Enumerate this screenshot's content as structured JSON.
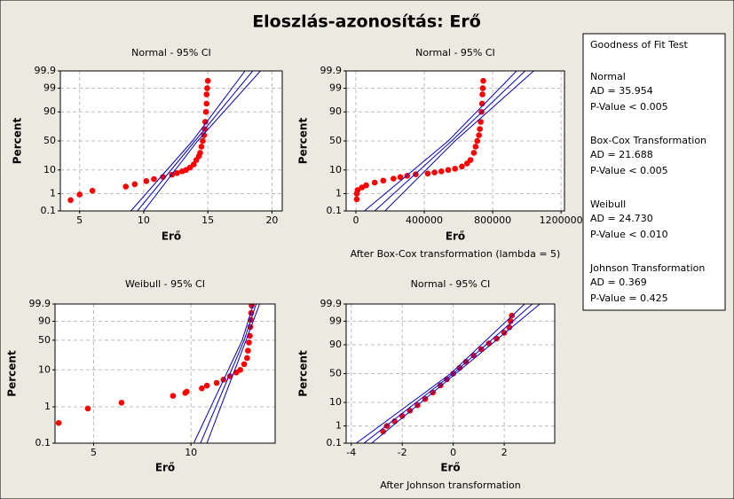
{
  "title": "Eloszlás-azonosítás: Erő",
  "chart_data": [
    {
      "type": "probability",
      "title": "Normal - 95% CI",
      "x_label": "Erő",
      "y_label": "Percent",
      "xscale": "linear",
      "yscale": "normal",
      "grid": true,
      "xlim": [
        3.5,
        20.8
      ],
      "xticks": [
        5,
        10,
        15,
        20
      ],
      "ylim": [
        0.1,
        99.9
      ],
      "yticks": [
        0.1,
        1,
        10,
        50,
        90,
        99,
        99.9
      ],
      "series": [
        {
          "style": "points",
          "color": "#ff0000",
          "x": [
            4.3,
            5.0,
            6.0,
            8.6,
            9.3,
            10.2,
            10.8,
            11.5,
            12.2,
            12.6,
            13.0,
            13.3,
            13.6,
            13.9,
            14.1,
            14.3,
            14.4,
            14.5,
            14.6,
            14.7,
            14.75,
            14.8,
            14.85,
            14.9,
            14.9,
            14.95,
            15.0
          ],
          "values": [
            0.45,
            0.9,
            1.4,
            2.2,
            2.8,
            3.8,
            4.6,
            5.6,
            6.8,
            7.8,
            9,
            10,
            12,
            15,
            20,
            25,
            30,
            40,
            50,
            60,
            70,
            80,
            90,
            95,
            98,
            99,
            99.6
          ]
        },
        {
          "style": "line",
          "color": "#0000cc",
          "x": [
            9.5,
            14,
            18.5
          ],
          "values": [
            0.1,
            50,
            99.9
          ]
        },
        {
          "style": "line",
          "color": "#0000cc",
          "x": [
            9.0,
            13.8,
            17.9
          ],
          "values": [
            0.1,
            50,
            99.9
          ]
        },
        {
          "style": "line",
          "color": "#0000cc",
          "x": [
            10.0,
            14.2,
            19.1
          ],
          "values": [
            0.1,
            50,
            99.9
          ]
        }
      ]
    },
    {
      "type": "probability",
      "title": "Normal - 95% CI",
      "x_label": "Erő",
      "y_label": "Percent",
      "note": "After Box-Cox transformation (lambda = 5)",
      "xscale": "linear",
      "yscale": "normal",
      "grid": true,
      "xlim": [
        -57000,
        1220000
      ],
      "xticks": [
        0,
        400000,
        800000,
        1200000
      ],
      "ylim": [
        0.1,
        99.9
      ],
      "yticks": [
        0.1,
        1,
        10,
        50,
        90,
        99,
        99.9
      ],
      "series": [
        {
          "style": "points",
          "color": "#ff0000",
          "x": [
            5000,
            5000,
            10000,
            35000,
            60000,
            110000,
            160000,
            220000,
            260000,
            300000,
            350000,
            420000,
            460000,
            500000,
            540000,
            580000,
            620000,
            650000,
            670000,
            690000,
            700000,
            710000,
            720000,
            725000,
            730000,
            735000,
            738000,
            740000,
            742000,
            745000
          ],
          "values": [
            0.5,
            1.0,
            1.5,
            2.0,
            2.5,
            3.3,
            4.0,
            4.8,
            5.5,
            6.2,
            7.0,
            7.5,
            8.2,
            9,
            10,
            11,
            13,
            16,
            20,
            30,
            40,
            50,
            60,
            70,
            80,
            90,
            95,
            98,
            99,
            99.6
          ]
        },
        {
          "style": "line",
          "color": "#0000cc",
          "x": [
            110000,
            560000,
            990000
          ],
          "values": [
            0.1,
            50,
            99.9
          ]
        },
        {
          "style": "line",
          "color": "#0000cc",
          "x": [
            50000,
            540000,
            940000
          ],
          "values": [
            0.1,
            50,
            99.9
          ]
        },
        {
          "style": "line",
          "color": "#0000cc",
          "x": [
            170000,
            580000,
            1040000
          ],
          "values": [
            0.1,
            50,
            99.9
          ]
        }
      ]
    },
    {
      "type": "probability",
      "title": "Weibull - 95% CI",
      "x_label": "Erő",
      "y_label": "Percent",
      "xscale": "log",
      "yscale": "weibull",
      "grid": true,
      "xlim": [
        3.8,
        18.2
      ],
      "xticks": [
        5,
        10
      ],
      "ylim": [
        0.1,
        99.9
      ],
      "yticks": [
        0.1,
        1,
        10,
        50,
        90,
        99.9
      ],
      "series": [
        {
          "style": "points",
          "color": "#ff0000",
          "x": [
            3.9,
            4.8,
            6.1,
            8.8,
            9.6,
            9.7,
            10.8,
            11.2,
            12.0,
            12.6,
            13.2,
            13.8,
            14.2,
            14.6,
            14.9,
            15.0,
            15.1,
            15.2,
            15.25,
            15.3,
            15.35,
            15.4
          ],
          "values": [
            0.36,
            0.9,
            1.3,
            2.0,
            2.4,
            2.6,
            3.2,
            3.8,
            4.5,
            5.5,
            6.8,
            8.5,
            10,
            14,
            20,
            30,
            45,
            60,
            80,
            92,
            98,
            99.8
          ]
        },
        {
          "style": "line",
          "color": "#0000cc",
          "x": [
            10.7,
            14.6,
            15.9
          ],
          "values": [
            0.1,
            50,
            99.9
          ]
        },
        {
          "style": "line",
          "color": "#0000cc",
          "x": [
            10.2,
            14.4,
            15.6
          ],
          "values": [
            0.1,
            50,
            99.9
          ]
        },
        {
          "style": "line",
          "color": "#0000cc",
          "x": [
            11.2,
            14.8,
            16.3
          ],
          "values": [
            0.1,
            50,
            99.9
          ]
        }
      ]
    },
    {
      "type": "probability",
      "title": "Normal - 95% CI",
      "x_label": "Erő",
      "y_label": "Percent",
      "note": "After Johnson transformation",
      "xscale": "linear",
      "yscale": "normal",
      "grid": true,
      "xlim": [
        -4.2,
        3.98
      ],
      "xticks": [
        -4,
        -2,
        0,
        2
      ],
      "ylim": [
        0.1,
        99.9
      ],
      "yticks": [
        0.1,
        1,
        10,
        50,
        90,
        99,
        99.9
      ],
      "series": [
        {
          "style": "points",
          "color": "#ff0000",
          "x": [
            -2.75,
            -2.6,
            -2.3,
            -2.0,
            -1.7,
            -1.4,
            -1.1,
            -0.8,
            -0.5,
            -0.25,
            0,
            0.25,
            0.5,
            0.8,
            1.1,
            1.4,
            1.7,
            2.0,
            2.2,
            2.25,
            2.3
          ],
          "values": [
            0.5,
            1.0,
            1.7,
            3,
            5,
            8,
            13,
            20,
            30,
            40,
            50,
            60,
            70,
            79,
            86,
            91,
            94,
            96.5,
            98,
            99,
            99.5
          ]
        },
        {
          "style": "line",
          "color": "#0000cc",
          "x": [
            -3.5,
            0,
            3.1
          ],
          "values": [
            0.1,
            50,
            99.9
          ]
        },
        {
          "style": "line",
          "color": "#0000cc",
          "x": [
            -3.8,
            -0.1,
            2.8
          ],
          "values": [
            0.1,
            50,
            99.9
          ]
        },
        {
          "style": "line",
          "color": "#0000cc",
          "x": [
            -3.2,
            0.1,
            3.4
          ],
          "values": [
            0.1,
            50,
            99.9
          ]
        }
      ]
    }
  ],
  "goodness_of_fit": {
    "title": "Goodness of Fit Test",
    "tests": [
      {
        "name": "Normal",
        "ad": "AD = 35.954",
        "p": "P-Value < 0.005"
      },
      {
        "name": "Box-Cox Transformation",
        "ad": "AD = 21.688",
        "p": "P-Value < 0.005"
      },
      {
        "name": "Weibull",
        "ad": "AD = 24.730",
        "p": "P-Value < 0.010"
      },
      {
        "name": "Johnson Transformation",
        "ad": "AD = 0.369",
        "p": "P-Value = 0.425"
      }
    ]
  }
}
